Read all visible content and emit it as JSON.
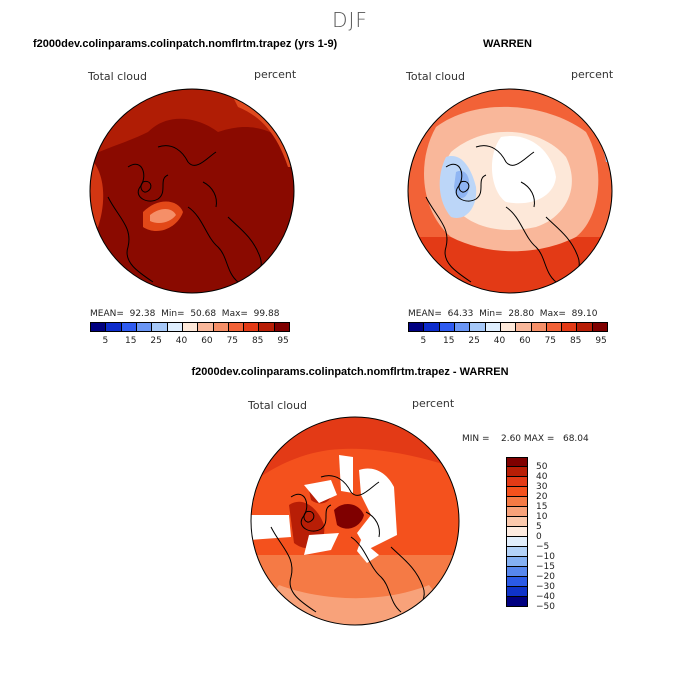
{
  "season": "DJF",
  "top_left": {
    "title": "f2000dev.colinparams.colinpatch.nomflrtm.trapez (yrs 1-9)",
    "variable": "Total cloud",
    "units": "percent",
    "stats": "MEAN=  92.38  Min=  50.68  Max=  99.88",
    "colorbar_labels": [
      "5",
      "15",
      "25",
      "40",
      "60",
      "75",
      "85",
      "95"
    ]
  },
  "top_right": {
    "title": "WARREN",
    "variable": "Total cloud",
    "units": "percent",
    "stats": "MEAN=  64.33  Min=  28.80  Max=  89.10",
    "colorbar_labels": [
      "5",
      "15",
      "25",
      "40",
      "60",
      "75",
      "85",
      "95"
    ]
  },
  "bottom": {
    "title": "f2000dev.colinparams.colinpatch.nomflrtm.trapez - WARREN",
    "variable": "Total cloud",
    "units": "percent",
    "stats": "MIN =    2.60 MAX =   68.04",
    "colorbar_labels": [
      "50",
      "40",
      "30",
      "20",
      "15",
      "10",
      "5",
      "0",
      "−5",
      "−10",
      "−15",
      "−20",
      "−30",
      "−40",
      "−50"
    ]
  },
  "colors": {
    "abs_scale": [
      "#000080",
      "#0d2ccc",
      "#2f5bf0",
      "#6b96f5",
      "#a6c8f8",
      "#dfeefe",
      "#fde8d9",
      "#f9b79a",
      "#f58f68",
      "#f26237",
      "#e33a16",
      "#b81e06",
      "#7f0000"
    ],
    "diff_scale": [
      "#7f0000",
      "#b81e06",
      "#e33a16",
      "#f4511d",
      "#f57a45",
      "#f8a27a",
      "#fbc9ad",
      "#fdebe0",
      "#e1eefc",
      "#b3d2f8",
      "#84b0f3",
      "#5787ee",
      "#2b5ae6",
      "#0f33c8",
      "#000080"
    ],
    "coast": "#000000"
  }
}
